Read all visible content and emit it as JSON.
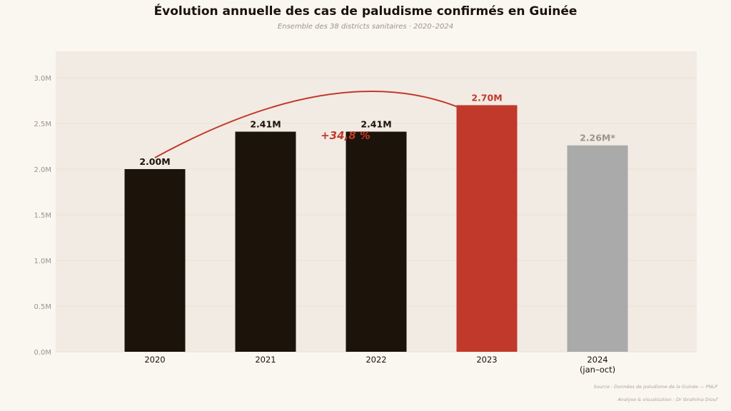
{
  "chart_data": {
    "type": "bar",
    "title": "Évolution annuelle des cas de paludisme confirmés en Guinée",
    "subtitle": "Ensemble des 38 districts sanitaires · 2020–2024",
    "categories": [
      "2020",
      "2021",
      "2022",
      "2023",
      "2024"
    ],
    "category_sublabels": [
      "",
      "",
      "",
      "",
      "(jan–oct)"
    ],
    "values": [
      2.0,
      2.41,
      2.41,
      2.7,
      2.26
    ],
    "data_labels": [
      "2.00M",
      "2.41M",
      "2.41M",
      "2.70M",
      "2.26M*"
    ],
    "unit": "M",
    "ylim": [
      0,
      3.3
    ],
    "yticks": [
      0,
      0.5,
      1.0,
      1.5,
      2.0,
      2.5,
      3.0
    ],
    "ytick_labels": [
      "0.0M",
      "0.5M",
      "1.0M",
      "1.5M",
      "2.0M",
      "2.5M",
      "3.0M"
    ],
    "grid": true,
    "colors": [
      "#1c140a",
      "#1c140a",
      "#1c140a",
      "#c0392b",
      "#aaaaaa"
    ],
    "label_colors": [
      "#1a1208",
      "#1a1208",
      "#1a1208",
      "#c0392b",
      "#9a948c"
    ],
    "annotation": {
      "text": "+34,8 %",
      "from": "2020",
      "to": "2023",
      "color": "#c0392b"
    },
    "source": "Source : Données de paludisme de la Guinée — PNLP",
    "credit": "Analyse & visualisation : Dr Ibrahima Diouf"
  }
}
